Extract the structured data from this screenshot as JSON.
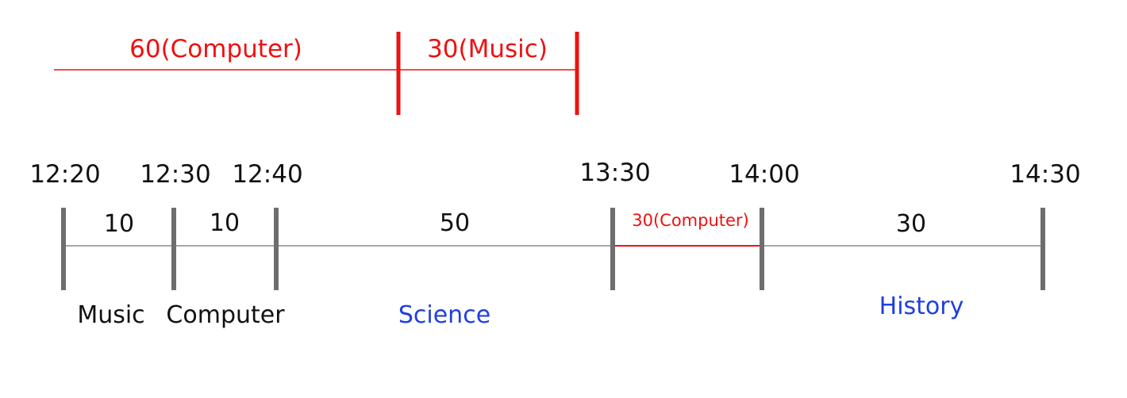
{
  "top_segments": [
    {
      "label": "60(Computer)",
      "color": "#ee1111"
    },
    {
      "label": "30(Music)",
      "color": "#ee1111"
    }
  ],
  "timeline": {
    "ticks": [
      "12:20",
      "12:30",
      "12:40",
      "13:30",
      "14:00",
      "14:30"
    ],
    "durations": [
      "10",
      "10",
      "50",
      "30(Computer)",
      "30"
    ],
    "subjects": [
      "Music",
      "Computer",
      "Science",
      "History"
    ]
  },
  "colors": {
    "accent_red": "#ee1111",
    "subject_blue": "#1f3fe0",
    "tick_gray": "#6e6e6e",
    "line_gray": "#8a8a8a"
  }
}
